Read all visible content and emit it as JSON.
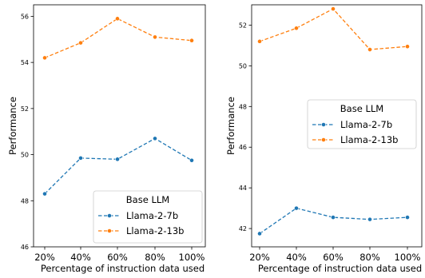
{
  "colors": {
    "blue": "#1f77b4",
    "orange": "#ff7f0e",
    "legend_border": "#cccccc"
  },
  "chart_data": [
    {
      "type": "line",
      "categories": [
        "20%",
        "40%",
        "60%",
        "80%",
        "100%"
      ],
      "xlabel": "Percentage of instruction data used",
      "ylabel": "Performance",
      "ylim": [
        46,
        56.5
      ],
      "yticks": [
        "46",
        "48",
        "50",
        "52",
        "54",
        "56"
      ],
      "yticks_values": [
        46,
        48,
        50,
        52,
        54,
        56
      ],
      "grid": false,
      "legend": {
        "title": "Base LLM",
        "placement": "lower-right"
      },
      "series": [
        {
          "name": "Llama-2-7b",
          "color": "#1f77b4",
          "values": [
            48.3,
            49.85,
            49.8,
            50.7,
            49.75
          ]
        },
        {
          "name": "Llama-2-13b",
          "color": "#ff7f0e",
          "values": [
            54.2,
            54.85,
            55.9,
            55.1,
            54.95
          ]
        }
      ]
    },
    {
      "type": "line",
      "categories": [
        "20%",
        "40%",
        "60%",
        "80%",
        "100%"
      ],
      "xlabel": "Percentage of instruction data used",
      "ylabel": "Performance",
      "ylim": [
        41.1,
        53
      ],
      "yticks": [
        "42",
        "44",
        "46",
        "48",
        "50",
        "52"
      ],
      "yticks_values": [
        42,
        44,
        46,
        48,
        50,
        52
      ],
      "grid": false,
      "legend": {
        "title": "Base LLM",
        "placement": "center-right"
      },
      "series": [
        {
          "name": "Llama-2-7b",
          "color": "#1f77b4",
          "values": [
            41.75,
            43.0,
            42.55,
            42.45,
            42.55
          ]
        },
        {
          "name": "Llama-2-13b",
          "color": "#ff7f0e",
          "values": [
            51.2,
            51.85,
            52.8,
            50.8,
            50.95
          ]
        }
      ]
    }
  ]
}
